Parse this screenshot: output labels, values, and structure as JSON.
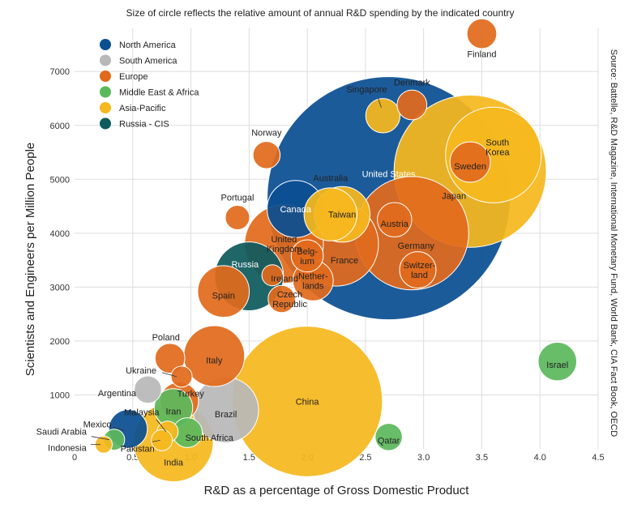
{
  "chart_data": {
    "type": "bubble",
    "title": "Size of circle reflects the relative amount of annual R&D spending by the indicated country",
    "xlabel": "R&D as a percentage of Gross Domestic Product",
    "ylabel": "Scientists and Engineers per Million People",
    "xlim": [
      0,
      4.5
    ],
    "ylim": [
      0,
      7800
    ],
    "xticks": [
      "0",
      "0.5",
      "1.0",
      "1.5",
      "2.0",
      "2.5",
      "3.0",
      "3.5",
      "4.0",
      "4.5"
    ],
    "yticks": [
      "1000",
      "2000",
      "3000",
      "4000",
      "5000",
      "6000",
      "7000"
    ],
    "source": "Source: Battelle, R&D Magazine, International Monetary Fund, World Bank, CIA Fact Book, OECD",
    "legend_position": "top-left",
    "legend": [
      {
        "name": "North America",
        "color": "#0b4f91"
      },
      {
        "name": "South America",
        "color": "#b8b8b8"
      },
      {
        "name": "Europe",
        "color": "#e16a1d"
      },
      {
        "name": "Middle East & Africa",
        "color": "#5cb85c"
      },
      {
        "name": "Asia-Pacific",
        "color": "#f5b81e"
      },
      {
        "name": "Russia - CIS",
        "color": "#0e5a5e"
      }
    ],
    "points": [
      {
        "label": "United States",
        "region": "North America",
        "x": 2.7,
        "y": 4650,
        "size": 400
      },
      {
        "label": "China",
        "region": "Asia-Pacific",
        "x": 2.0,
        "y": 880,
        "size": 153
      },
      {
        "label": "Japan",
        "region": "Asia-Pacific",
        "x": 3.4,
        "y": 5150,
        "size": 157
      },
      {
        "label": "Germany",
        "region": "Europe",
        "x": 2.9,
        "y": 4000,
        "size": 87
      },
      {
        "label": "South Korea",
        "region": "Asia-Pacific",
        "x": 3.6,
        "y": 5450,
        "size": 62
      },
      {
        "label": "France",
        "region": "Europe",
        "x": 2.25,
        "y": 3800,
        "size": 48
      },
      {
        "label": "United Kingdom",
        "region": "Europe",
        "x": 1.8,
        "y": 3800,
        "size": 42
      },
      {
        "label": "Russia",
        "region": "Russia - CIS",
        "x": 1.5,
        "y": 3200,
        "size": 32
      },
      {
        "label": "Brazil",
        "region": "South America",
        "x": 1.3,
        "y": 720,
        "size": 29
      },
      {
        "label": "Italy",
        "region": "Europe",
        "x": 1.2,
        "y": 1720,
        "size": 25
      },
      {
        "label": "India",
        "region": "Asia-Pacific",
        "x": 0.85,
        "y": 130,
        "size": 43
      },
      {
        "label": "Canada",
        "region": "North America",
        "x": 1.9,
        "y": 4450,
        "size": 22
      },
      {
        "label": "Australia",
        "region": "Asia-Pacific",
        "x": 2.2,
        "y": 4350,
        "size": 19
      },
      {
        "label": "Taiwan",
        "region": "Asia-Pacific",
        "x": 2.3,
        "y": 4350,
        "size": 21
      },
      {
        "label": "Spain",
        "region": "Europe",
        "x": 1.28,
        "y": 2920,
        "size": 18
      },
      {
        "label": "Netherlands",
        "region": "Europe",
        "x": 2.05,
        "y": 3120,
        "size": 11
      },
      {
        "label": "Sweden",
        "region": "Europe",
        "x": 3.4,
        "y": 5320,
        "size": 11
      },
      {
        "label": "Switzerland",
        "region": "Europe",
        "x": 2.95,
        "y": 3320,
        "size": 9
      },
      {
        "label": "Austria",
        "region": "Europe",
        "x": 2.75,
        "y": 4250,
        "size": 8
      },
      {
        "label": "Belgium",
        "region": "Europe",
        "x": 2.0,
        "y": 3580,
        "size": 7
      },
      {
        "label": "Finland",
        "region": "Europe",
        "x": 3.5,
        "y": 7700,
        "size": 6
      },
      {
        "label": "Denmark",
        "region": "Europe",
        "x": 2.9,
        "y": 6380,
        "size": 6
      },
      {
        "label": "Singapore",
        "region": "Asia-Pacific",
        "x": 2.65,
        "y": 6180,
        "size": 8
      },
      {
        "label": "Norway",
        "region": "Europe",
        "x": 1.65,
        "y": 5450,
        "size": 5
      },
      {
        "label": "Portugal",
        "region": "Europe",
        "x": 1.4,
        "y": 4290,
        "size": 4
      },
      {
        "label": "Ireland",
        "region": "Europe",
        "x": 1.7,
        "y": 3220,
        "size": 3
      },
      {
        "label": "Czech Republic",
        "region": "Europe",
        "x": 1.78,
        "y": 2780,
        "size": 5
      },
      {
        "label": "Poland",
        "region": "Europe",
        "x": 0.82,
        "y": 1680,
        "size": 6
      },
      {
        "label": "Ukraine",
        "region": "Europe",
        "x": 0.92,
        "y": 1340,
        "size": 3
      },
      {
        "label": "Argentina",
        "region": "South America",
        "x": 0.63,
        "y": 1100,
        "size": 5
      },
      {
        "label": "Turkey",
        "region": "Europe",
        "x": 0.9,
        "y": 880,
        "size": 10
      },
      {
        "label": "Iran",
        "region": "Middle East & Africa",
        "x": 0.85,
        "y": 760,
        "size": 10
      },
      {
        "label": "Mexico",
        "region": "North America",
        "x": 0.46,
        "y": 370,
        "size": 10
      },
      {
        "label": "Malaysia",
        "region": "Asia-Pacific",
        "x": 0.8,
        "y": 320,
        "size": 3
      },
      {
        "label": "South Africa",
        "region": "Middle East & Africa",
        "x": 0.97,
        "y": 300,
        "size": 6
      },
      {
        "label": "Saudi Arabia",
        "region": "Middle East & Africa",
        "x": 0.34,
        "y": 170,
        "size": 3
      },
      {
        "label": "Pakistan",
        "region": "Asia-Pacific",
        "x": 0.75,
        "y": 160,
        "size": 3
      },
      {
        "label": "Indonesia",
        "region": "Asia-Pacific",
        "x": 0.25,
        "y": 80,
        "size": 2
      },
      {
        "label": "Israel",
        "region": "Middle East & Africa",
        "x": 4.15,
        "y": 1620,
        "size": 10
      },
      {
        "label": "Qatar",
        "region": "Middle East & Africa",
        "x": 2.7,
        "y": 220,
        "size": 5
      }
    ]
  }
}
